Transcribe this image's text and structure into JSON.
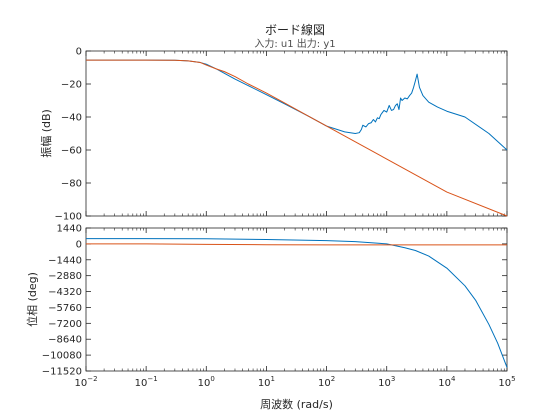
{
  "title": "ボード線図",
  "subtitle": "入力: u1  出力: y1",
  "colors": {
    "series1": "#0072BD",
    "series2": "#D95319",
    "axis": "#262626",
    "grid": "#e6e6e6"
  },
  "chart_data": [
    {
      "type": "line",
      "panel": "magnitude",
      "xlabel": "",
      "ylabel": "振幅 (dB)",
      "xscale": "log",
      "xlim": [
        0.01,
        100000
      ],
      "ylim": [
        -100,
        0
      ],
      "yticks": [
        0,
        -20,
        -40,
        -60,
        -80,
        -100
      ],
      "ytick_labels": [
        "0",
        "−20",
        "−40",
        "−60",
        "−80",
        "−100"
      ],
      "grid": false,
      "series": [
        {
          "color": "#0072BD",
          "x": [
            0.01,
            0.1,
            0.3,
            0.5,
            0.8,
            1,
            1.5,
            2,
            3,
            5,
            10,
            20,
            50,
            100,
            200,
            300,
            350,
            380,
            400,
            450,
            500,
            550,
            600,
            650,
            700,
            750,
            800,
            900,
            1000,
            1100,
            1200,
            1300,
            1400,
            1500,
            1600,
            1700,
            1800,
            2000,
            2200,
            2400,
            2600,
            2800,
            3000,
            3200,
            3500,
            4000,
            5000,
            7000,
            10000,
            20000,
            50000,
            100000
          ],
          "y": [
            -5.5,
            -5.5,
            -5.6,
            -6,
            -7,
            -8,
            -11,
            -13.5,
            -17,
            -21,
            -26.5,
            -32,
            -39.5,
            -45.5,
            -49,
            -50,
            -49.5,
            -47.5,
            -45,
            -46,
            -44,
            -43.5,
            -41.5,
            -43,
            -40.5,
            -41,
            -38.5,
            -36,
            -37,
            -33,
            -36,
            -35.5,
            -33,
            -32,
            -35.5,
            -28.5,
            -30,
            -28.5,
            -29,
            -27,
            -25.5,
            -22,
            -18,
            -14,
            -22,
            -27,
            -31,
            -34,
            -36.5,
            -40,
            -50,
            -60
          ]
        },
        {
          "color": "#D95319",
          "x": [
            0.01,
            0.1,
            0.3,
            0.5,
            0.8,
            1,
            1.5,
            2,
            3,
            5,
            10,
            20,
            50,
            100,
            1000,
            10000,
            100000
          ],
          "y": [
            -5.5,
            -5.5,
            -5.6,
            -6,
            -7,
            -8.5,
            -11,
            -12.5,
            -15.5,
            -20,
            -25.5,
            -31.5,
            -39.5,
            -45.5,
            -65.5,
            -85.5,
            -100
          ]
        }
      ]
    },
    {
      "type": "line",
      "panel": "phase",
      "xlabel": "周波数 (rad/s)",
      "ylabel": "位相 (deg)",
      "xscale": "log",
      "xlim": [
        0.01,
        100000
      ],
      "ylim": [
        -11520,
        1440
      ],
      "xticks": [
        0.01,
        0.1,
        1,
        10,
        100,
        1000,
        10000,
        100000
      ],
      "xtick_labels": [
        [
          "10",
          "−2"
        ],
        [
          "10",
          "−1"
        ],
        [
          "10",
          "0"
        ],
        [
          "10",
          "1"
        ],
        [
          "10",
          "2"
        ],
        [
          "10",
          "3"
        ],
        [
          "10",
          "4"
        ],
        [
          "10",
          "5"
        ]
      ],
      "yticks": [
        1440,
        0,
        -1440,
        -2880,
        -4320,
        -5760,
        -7200,
        -8640,
        -10080,
        -11520
      ],
      "ytick_labels": [
        "1440",
        "0",
        "−1440",
        "−2880",
        "−4320",
        "−5760",
        "−7200",
        "−8640",
        "−10080",
        "−11520"
      ],
      "grid": false,
      "series": [
        {
          "color": "#0072BD",
          "x": [
            0.01,
            0.1,
            1,
            10,
            100,
            300,
            1000,
            1500,
            2000,
            3000,
            5000,
            10000,
            20000,
            30000,
            50000,
            70000,
            100000
          ],
          "y": [
            480,
            480,
            470,
            400,
            300,
            200,
            0,
            -200,
            -350,
            -600,
            -1100,
            -2200,
            -3800,
            -5100,
            -7300,
            -9000,
            -11200
          ]
        },
        {
          "color": "#D95319",
          "x": [
            0.01,
            0.1,
            1,
            10,
            100,
            1000,
            10000,
            100000
          ],
          "y": [
            0,
            0,
            -40,
            -80,
            -90,
            -90,
            -90,
            -90
          ]
        }
      ]
    }
  ]
}
